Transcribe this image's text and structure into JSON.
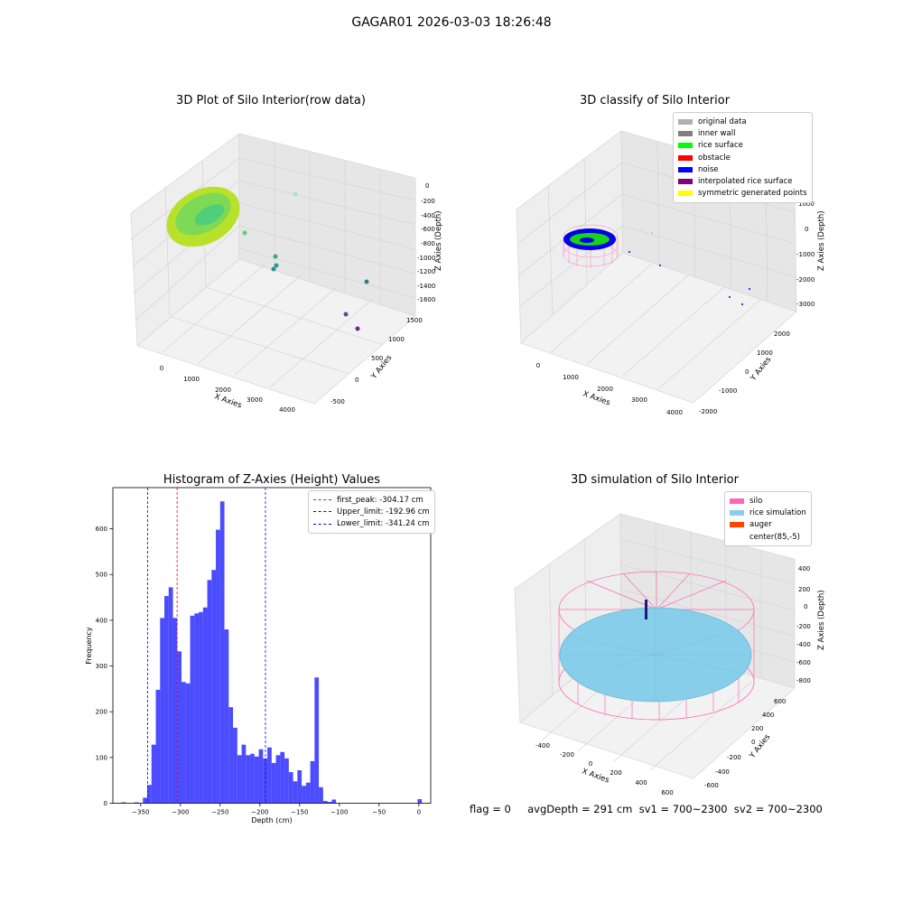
{
  "suptitle": "GAGAR01 2026-03-03 18:26:48",
  "panel1": {
    "title": "3D Plot of Silo Interior(row data)",
    "xlabel": "X Axies",
    "ylabel": "Y Axies",
    "zlabel": "Z Axies (Depth)",
    "xticks": [
      "0",
      "1000",
      "2000",
      "3000",
      "4000"
    ],
    "yticks": [
      "-500",
      "0",
      "500",
      "1000",
      "1500"
    ],
    "zticks": [
      "0",
      "-200",
      "-400",
      "-600",
      "-800",
      "-1000",
      "-1200",
      "-1400",
      "-1600"
    ]
  },
  "panel2": {
    "title": "3D classify of Silo Interior",
    "xlabel": "X Axies",
    "ylabel": "Y Axies",
    "zlabel": "Z Axies (Depth)",
    "xticks": [
      "0",
      "1000",
      "2000",
      "3000",
      "4000"
    ],
    "yticks": [
      "-2000",
      "-1000",
      "0",
      "1000",
      "2000"
    ],
    "zticks": [
      "1000",
      "0",
      "-1000",
      "-2000",
      "-3000"
    ],
    "legend": [
      {
        "label": "original data",
        "color": "#b0b0b0"
      },
      {
        "label": "inner wall",
        "color": "#808080"
      },
      {
        "label": "rice surface",
        "color": "#00ff00"
      },
      {
        "label": "obstacle",
        "color": "#ff0000"
      },
      {
        "label": "noise",
        "color": "#0000ff"
      },
      {
        "label": "interpolated rice surface",
        "color": "#800080"
      },
      {
        "label": "symmetric generated points",
        "color": "#ffff00"
      }
    ]
  },
  "panel3": {
    "title": "Histogram of Z-Axies (Height) Values",
    "xlabel": "Depth (cm)",
    "ylabel": "Frequency",
    "legend": [
      {
        "label": "first_peak: -304.17 cm",
        "color": "#ff0000"
      },
      {
        "label": "Upper_limit: -192.96 cm",
        "color": "#0000ff"
      },
      {
        "label": "Lower_limit: -341.24 cm",
        "color": "#0000ff"
      }
    ]
  },
  "panel4": {
    "title": "3D simulation of Silo Interior",
    "xlabel": "X Axies",
    "ylabel": "Y Axies",
    "zlabel": "Z Axies (Depth)",
    "xticks": [
      "-400",
      "-200",
      "0",
      "200",
      "400",
      "600"
    ],
    "yticks": [
      "-600",
      "-400",
      "-200",
      "0",
      "200",
      "400",
      "600"
    ],
    "zticks": [
      "400",
      "200",
      "0",
      "-200",
      "-400",
      "-600",
      "-800"
    ],
    "legend": [
      {
        "label": "silo",
        "color": "#ff69b4"
      },
      {
        "label": "rice simulation",
        "color": "#87ceeb"
      },
      {
        "label": "auger",
        "color": "#ff4500"
      },
      {
        "label": "center(85,-5)",
        "color": "#ffffff"
      }
    ]
  },
  "footer": "flag = 0     avgDepth = 291 cm  sv1 = 700~2300  sv2 = 700~2300",
  "chart_data": [
    {
      "type": "scatter",
      "title": "3D Plot of Silo Interior(row data)",
      "xlabel": "X Axies",
      "ylabel": "Y Axies",
      "zlabel": "Z Axies (Depth)"
    },
    {
      "type": "scatter",
      "title": "3D classify of Silo Interior",
      "xlabel": "X Axies",
      "ylabel": "Y Axies",
      "zlabel": "Z Axies (Depth)"
    },
    {
      "type": "bar",
      "title": "Histogram of Z-Axies (Height) Values",
      "xlabel": "Depth (cm)",
      "ylabel": "Frequency",
      "xlim": [
        -385,
        15
      ],
      "ylim": [
        0,
        690
      ],
      "xticks": [
        -350,
        -300,
        -250,
        -200,
        -150,
        -100,
        -50,
        0
      ],
      "yticks": [
        0,
        100,
        200,
        300,
        400,
        500,
        600
      ],
      "bin_width": 5.39,
      "bin_starts": [
        -374.2,
        -368.8,
        -363.4,
        -358.0,
        -352.6,
        -347.2,
        -341.8,
        -336.4,
        -331.0,
        -325.6,
        -320.2,
        -314.8,
        -309.4,
        -304.0,
        -298.6,
        -293.2,
        -287.8,
        -282.4,
        -277.0,
        -271.6,
        -266.2,
        -260.8,
        -255.4,
        -250.0,
        -244.6,
        -239.2,
        -233.8,
        -228.4,
        -223.0,
        -217.6,
        -212.2,
        -206.8,
        -201.4,
        -196.0,
        -190.6,
        -185.2,
        -179.8,
        -174.4,
        -169.0,
        -163.6,
        -158.2,
        -152.8,
        -147.4,
        -142.0,
        -136.6,
        -131.2,
        -125.8,
        -120.4,
        -115.0,
        -109.6,
        -104.2,
        -98.8,
        -93.4,
        -88.0,
        -82.6,
        -77.2,
        -71.8,
        -66.4,
        -61.0,
        -55.6,
        -50.2,
        -44.8,
        -39.4,
        -34.0,
        -28.6,
        -23.2,
        -17.8,
        -12.4,
        -7.0,
        -1.6
      ],
      "counts": [
        2,
        0,
        0,
        2,
        0,
        12,
        40,
        128,
        248,
        405,
        453,
        472,
        405,
        332,
        265,
        262,
        410,
        415,
        418,
        428,
        488,
        510,
        598,
        660,
        380,
        210,
        165,
        105,
        128,
        105,
        108,
        102,
        118,
        98,
        122,
        88,
        105,
        112,
        98,
        68,
        48,
        72,
        38,
        45,
        92,
        275,
        35,
        5,
        3,
        8,
        0,
        0,
        0,
        0,
        0,
        0,
        0,
        0,
        0,
        0,
        0,
        0,
        0,
        0,
        0,
        0,
        0,
        0,
        0,
        9
      ],
      "vlines": [
        {
          "x": -304.17,
          "color": "#ff0000",
          "label": "first_peak: -304.17 cm"
        },
        {
          "x": -192.96,
          "color": "#0000ff",
          "label": "Upper_limit: -192.96 cm"
        },
        {
          "x": -341.24,
          "color": "#0000ff",
          "label": "Lower_limit: -341.24 cm"
        }
      ],
      "legend_position": "upper right"
    },
    {
      "type": "scatter",
      "title": "3D simulation of Silo Interior",
      "xlabel": "X Axies",
      "ylabel": "Y Axies",
      "zlabel": "Z Axies (Depth)"
    }
  ]
}
